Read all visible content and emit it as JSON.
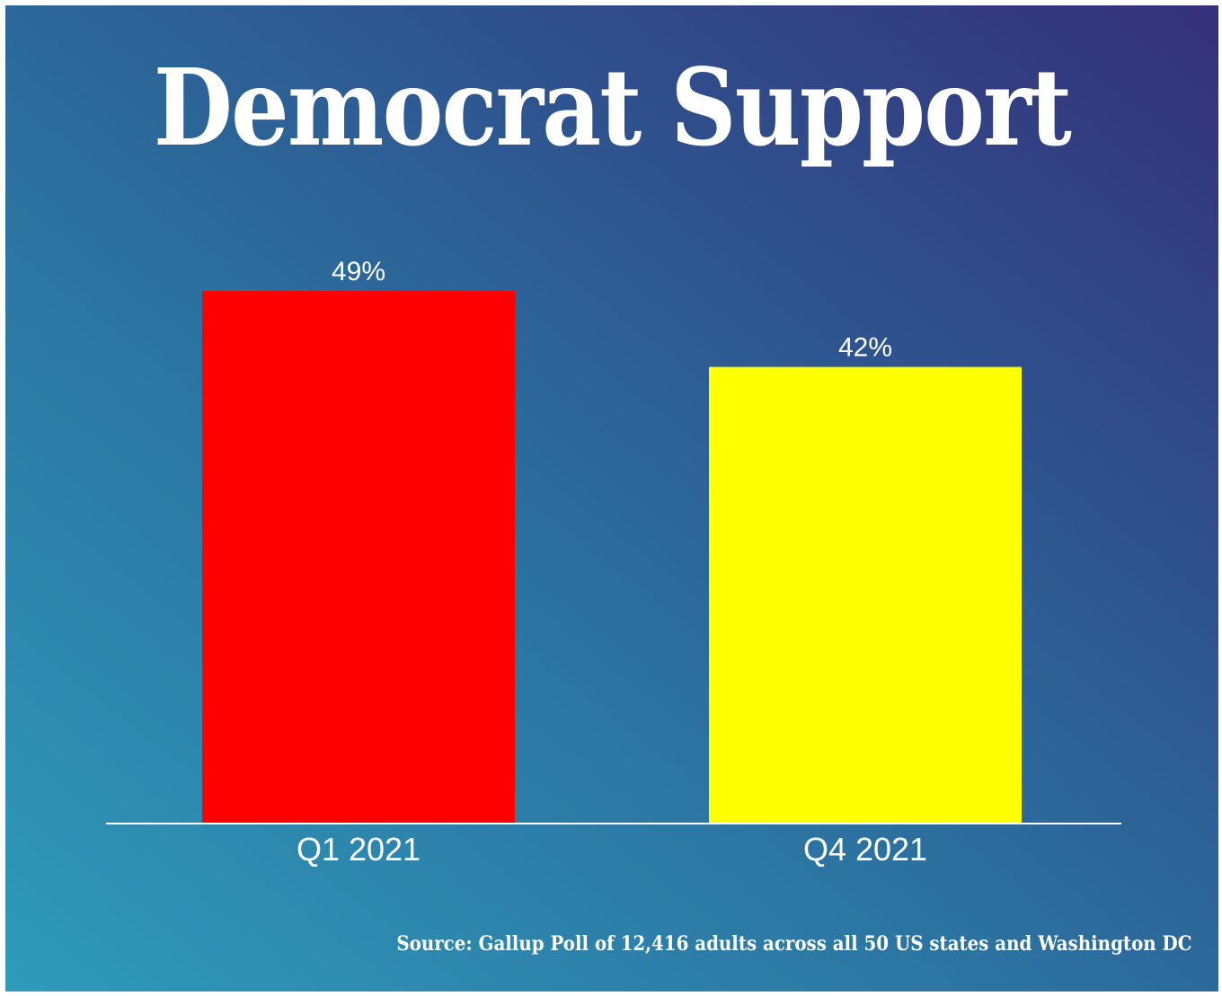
{
  "chart_data": {
    "type": "bar",
    "title": "Democrat Support",
    "categories": [
      "Q1 2021",
      "Q4 2021"
    ],
    "values": [
      49,
      42
    ],
    "value_labels": [
      "49%",
      "42%"
    ],
    "bar_colors": [
      "#ff0000",
      "#ffff00"
    ],
    "xlabel": "",
    "ylabel": "",
    "ylim": [
      0,
      49
    ],
    "grid": false,
    "source": "Source: Gallup Poll of 12,416 adults across all 50 US states and Washington DC"
  },
  "colors": {
    "text": "#ffffff",
    "axis_line": "#ffffff"
  }
}
